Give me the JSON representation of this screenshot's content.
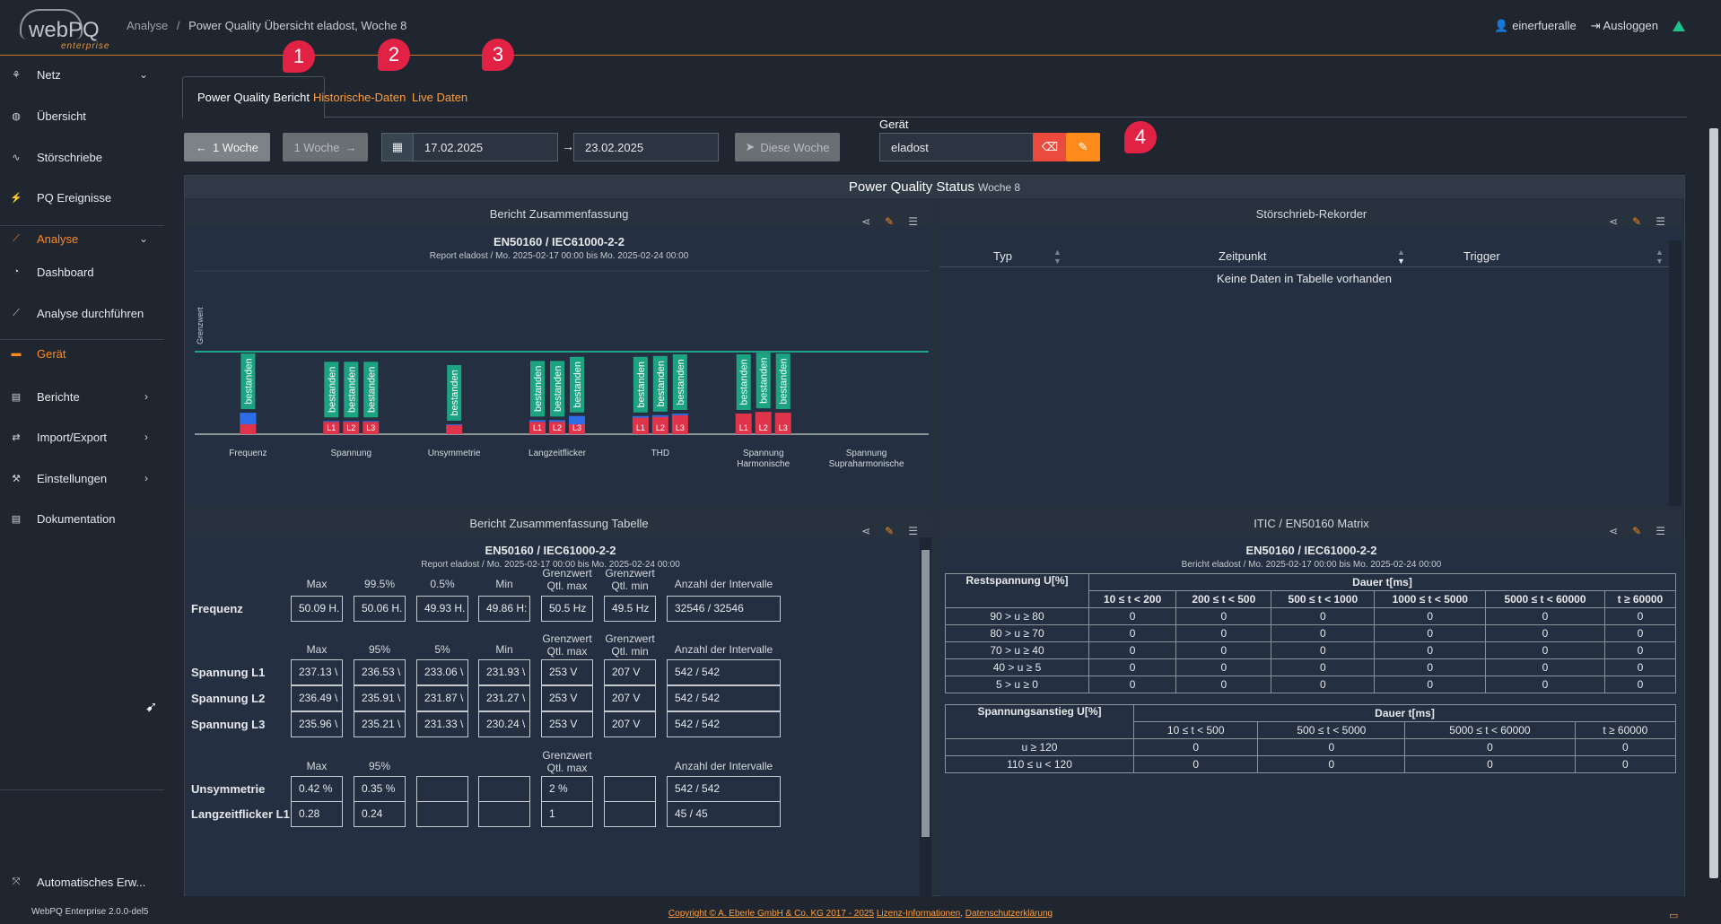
{
  "header": {
    "logo_main": "webPQ",
    "logo_sub": "enterprise",
    "breadcrumb_parent": "Analyse",
    "breadcrumb_sep": "/",
    "breadcrumb_current": "Power Quality Übersicht eladost, Woche 8",
    "user": "einerfueralle",
    "logout": "Ausloggen"
  },
  "sidebar": {
    "items": [
      {
        "label": "Netz",
        "icon": "network-icon"
      },
      {
        "label": "Übersicht",
        "icon": "globe-icon"
      },
      {
        "label": "Störschriebe",
        "icon": "wave-icon"
      },
      {
        "label": "PQ Ereignisse",
        "icon": "bolt-icon"
      },
      {
        "label": "Analyse",
        "icon": "chart-line-icon"
      },
      {
        "label": "Dashboard",
        "icon": "gauge-icon"
      },
      {
        "label": "Analyse durchführen",
        "icon": "chart-area-icon"
      },
      {
        "label": "Gerät",
        "icon": "device-icon"
      },
      {
        "label": "Berichte",
        "icon": "file-icon"
      },
      {
        "label": "Import/Export",
        "icon": "exchange-icon"
      },
      {
        "label": "Einstellungen",
        "icon": "wrench-icon"
      },
      {
        "label": "Dokumentation",
        "icon": "doc-icon"
      },
      {
        "label": "Automatisches Erw...",
        "icon": "expand-icon"
      }
    ],
    "version": "WebPQ Enterprise 2.0.0-del5"
  },
  "tabs": [
    {
      "label": "Power Quality Bericht",
      "marker": "1"
    },
    {
      "label": "Historische-Daten",
      "marker": "2"
    },
    {
      "label": "Live Daten",
      "marker": "3"
    }
  ],
  "toolbar": {
    "prev_week": "1 Woche",
    "next_week": "1 Woche",
    "date_from": "17.02.2025",
    "date_to": "23.02.2025",
    "this_week": "Diese Woche",
    "device_label": "Gerät",
    "device_value": "eladost",
    "marker": "4"
  },
  "status": {
    "title": "Power Quality Status",
    "week": "Woche 8"
  },
  "summary_chart": {
    "title": "Bericht Zusammenfassung",
    "norm": "EN50160 / IEC61000-2-2",
    "report": "Report eladost / Mo. 2025-02-17 00:00 bis Mo. 2025-02-24 00:00",
    "y_label": "Grenzwert",
    "pass_label": "bestanden"
  },
  "chart_data": {
    "type": "bar",
    "title": "Bericht Zusammenfassung",
    "ylabel": "Grenzwert",
    "categories": [
      "Frequenz",
      "Spannung",
      "Unsymmetrie",
      "Langzeitflicker",
      "THD",
      "Spannung Harmonische",
      "Spannung Supraharmonische"
    ],
    "groups": [
      {
        "category": "Frequenz",
        "bars": [
          {
            "label": "",
            "status": "bestanden",
            "red": 0.12,
            "blue": 0.14
          }
        ]
      },
      {
        "category": "Spannung",
        "bars": [
          {
            "label": "L1",
            "status": "bestanden",
            "red": 0.15,
            "blue": 0.01
          },
          {
            "label": "L2",
            "status": "bestanden",
            "red": 0.15,
            "blue": 0.01
          },
          {
            "label": "L3",
            "status": "bestanden",
            "red": 0.15,
            "blue": 0.01
          }
        ]
      },
      {
        "category": "Unsymmetrie",
        "bars": [
          {
            "label": "",
            "status": "bestanden",
            "red": 0.11,
            "blue": 0.01
          }
        ]
      },
      {
        "category": "Langzeitflicker",
        "bars": [
          {
            "label": "L1",
            "status": "bestanden",
            "red": 0.15,
            "blue": 0.02
          },
          {
            "label": "L2",
            "status": "bestanden",
            "red": 0.15,
            "blue": 0.02
          },
          {
            "label": "L3",
            "status": "bestanden",
            "red": 0.12,
            "blue": 0.1
          }
        ]
      },
      {
        "category": "THD",
        "bars": [
          {
            "label": "L1",
            "status": "bestanden",
            "red": 0.2,
            "blue": 0.02
          },
          {
            "label": "L2",
            "status": "bestanden",
            "red": 0.21,
            "blue": 0.02
          },
          {
            "label": "L3",
            "status": "bestanden",
            "red": 0.23,
            "blue": 0.02
          }
        ]
      },
      {
        "category": "Spannung Harmonische",
        "bars": [
          {
            "label": "L1",
            "status": "bestanden",
            "red": 0.25,
            "blue": 0.0
          },
          {
            "label": "L2",
            "status": "bestanden",
            "red": 0.27,
            "blue": 0.0
          },
          {
            "label": "L3",
            "status": "bestanden",
            "red": 0.26,
            "blue": 0.0
          }
        ]
      },
      {
        "category": "Spannung Supraharmonische",
        "bars": []
      }
    ],
    "limit_line": 1.0
  },
  "stoer": {
    "title": "Störschrieb-Rekorder",
    "col_typ": "Typ",
    "col_zeit": "Zeitpunkt",
    "col_trigger": "Trigger",
    "empty": "Keine Daten in Tabelle vorhanden"
  },
  "summary_table": {
    "title": "Bericht Zusammenfassung Tabelle",
    "norm": "EN50160 / IEC61000-2-2",
    "report": "Report eladost / Mo. 2025-02-17 00:00 bis Mo. 2025-02-24 00:00",
    "freq_headers": [
      "Max",
      "99.5%",
      "0.5%",
      "Min",
      "Grenzwert Qtl. max",
      "Grenzwert Qtl. min",
      "Anzahl der Intervalle"
    ],
    "volt_headers": [
      "Max",
      "95%",
      "5%",
      "Min",
      "Grenzwert Qtl. max",
      "Grenzwert Qtl. min",
      "Anzahl der Intervalle"
    ],
    "unsym_headers": [
      "Max",
      "95%",
      "",
      "",
      "Grenzwert Qtl. max",
      "",
      "Anzahl der Intervalle"
    ],
    "rows": [
      {
        "label": "Frequenz",
        "values": [
          "50.09 H.",
          "50.06 H.",
          "49.93 H.",
          "49.86 H:",
          "50.5 Hz",
          "49.5 Hz",
          "32546 / 32546"
        ]
      },
      {
        "label": "Spannung L1",
        "values": [
          "237.13 \\",
          "236.53 \\",
          "233.06 \\",
          "231.93 \\",
          "253 V",
          "207 V",
          "542 / 542"
        ]
      },
      {
        "label": "Spannung L2",
        "values": [
          "236.49 \\",
          "235.91 \\",
          "231.87 \\",
          "231.27 \\",
          "253 V",
          "207 V",
          "542 / 542"
        ]
      },
      {
        "label": "Spannung L3",
        "values": [
          "235.96 \\",
          "235.21 \\",
          "231.33 \\",
          "230.24 \\",
          "253 V",
          "207 V",
          "542 / 542"
        ]
      },
      {
        "label": "Unsymmetrie",
        "values": [
          "0.42 %",
          "0.35 %",
          "",
          "",
          "2 %",
          "",
          "542 / 542"
        ]
      },
      {
        "label": "Langzeitflicker L1",
        "values": [
          "0.28",
          "0.24",
          "",
          "",
          "1",
          "",
          "45 / 45"
        ]
      }
    ]
  },
  "itic": {
    "title": "ITIC / EN50160 Matrix",
    "norm": "EN50160 / IEC61000-2-2",
    "report": "Bericht eladost / Mo. 2025-02-17 00:00 bis Mo. 2025-02-24 00:00",
    "dip_head": "Restspannung U[%]",
    "dur_head": "Dauer t[ms]",
    "dip_cols": [
      "10 ≤ t < 200",
      "200 ≤ t < 500",
      "500 ≤ t < 1000",
      "1000 ≤ t < 5000",
      "5000 ≤ t < 60000",
      "t ≥ 60000"
    ],
    "dip_rows": [
      {
        "label": "90 > u ≥ 80",
        "values": [
          "0",
          "0",
          "0",
          "0",
          "0",
          "0"
        ]
      },
      {
        "label": "80 > u ≥ 70",
        "values": [
          "0",
          "0",
          "0",
          "0",
          "0",
          "0"
        ]
      },
      {
        "label": "70 > u ≥ 40",
        "values": [
          "0",
          "0",
          "0",
          "0",
          "0",
          "0"
        ]
      },
      {
        "label": "40 > u ≥ 5",
        "values": [
          "0",
          "0",
          "0",
          "0",
          "0",
          "0"
        ]
      },
      {
        "label": "5 > u ≥ 0",
        "values": [
          "0",
          "0",
          "0",
          "0",
          "0",
          "0"
        ]
      }
    ],
    "swell_head": "Spannungsanstieg U[%]",
    "swell_cols": [
      "10 ≤ t < 500",
      "500 ≤ t < 5000",
      "5000 ≤ t < 60000",
      "t ≥ 60000"
    ],
    "swell_rows": [
      {
        "label": "u ≥ 120",
        "values": [
          "0",
          "0",
          "0",
          "0"
        ]
      },
      {
        "label": "110 ≤ u < 120",
        "values": [
          "0",
          "0",
          "0",
          "0"
        ]
      }
    ]
  },
  "footer": {
    "copyright": "Copyright © A. Eberle GmbH & Co. KG 2017 - 2025",
    "license": "Lizenz-Informationen",
    "privacy": "Datenschutzerklärung"
  },
  "colors": {
    "accent": "#ff8a1c",
    "pass": "#1ca382",
    "red": "#e0344a",
    "blue": "#2d6ee8",
    "marker": "#e22244"
  }
}
